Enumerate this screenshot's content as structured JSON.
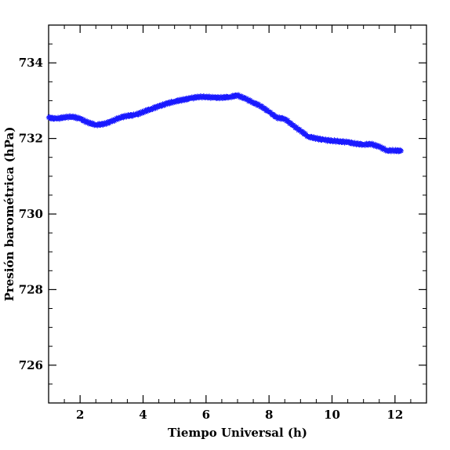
{
  "chart_data": {
    "type": "scatter",
    "xlabel": "Tiempo Universal (h)",
    "ylabel": "Presión barométrica (hPa)",
    "xlim": [
      1,
      13
    ],
    "ylim": [
      725,
      735
    ],
    "x_ticks": [
      2,
      4,
      6,
      8,
      10,
      12
    ],
    "y_ticks": [
      726,
      728,
      730,
      732,
      734
    ],
    "x_tick_labels": [
      "2",
      "4",
      "6",
      "8",
      "10",
      "12"
    ],
    "y_tick_labels": [
      "726",
      "728",
      "730",
      "732",
      "734"
    ],
    "marker": "star",
    "marker_color": "#1a1aff",
    "grid": false,
    "series": [
      {
        "x": [
          1.0,
          1.25,
          1.5,
          1.75,
          2.0,
          2.25,
          2.5,
          2.75,
          3.0,
          3.25,
          3.5,
          3.75,
          4.0,
          4.25,
          4.5,
          4.75,
          5.0,
          5.25,
          5.5,
          5.75,
          6.0,
          6.25,
          6.5,
          6.75,
          7.0,
          7.25,
          7.5,
          7.75,
          8.0,
          8.25,
          8.5,
          8.75,
          9.0,
          9.25,
          9.5,
          9.75,
          10.0,
          10.25,
          10.5,
          10.75,
          11.0,
          11.25,
          11.5,
          11.75,
          12.0,
          12.2
        ],
        "y": [
          732.55,
          732.52,
          732.56,
          732.58,
          732.52,
          732.42,
          732.36,
          732.38,
          732.45,
          732.55,
          732.6,
          732.62,
          732.7,
          732.78,
          732.85,
          732.92,
          732.98,
          733.02,
          733.06,
          733.1,
          733.1,
          733.08,
          733.08,
          733.1,
          733.14,
          733.05,
          732.95,
          732.85,
          732.7,
          732.55,
          732.52,
          732.35,
          732.2,
          732.05,
          732.0,
          731.96,
          731.94,
          731.92,
          731.9,
          731.86,
          731.84,
          731.85,
          731.78,
          731.68,
          731.68,
          731.67
        ]
      }
    ]
  }
}
